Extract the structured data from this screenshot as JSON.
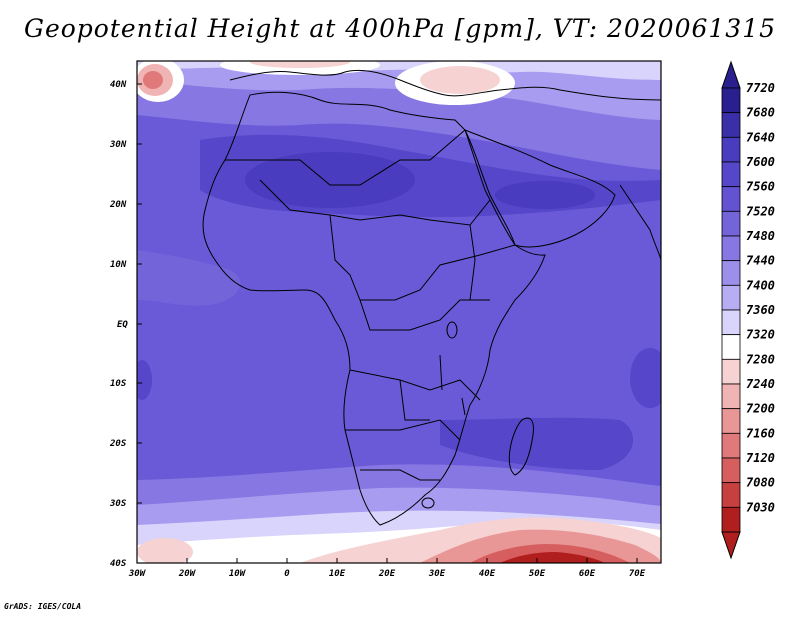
{
  "title": "Geopotential Height at 400hPa [gpm], VT: 2020061315",
  "credit": "GrADS: IGES/COLA",
  "colors": {
    "deep_blue": "#3a2fa8",
    "mid_blue": "#6a5ad8",
    "light_blue": "#a89cf0",
    "pale_blue": "#d9d4fb",
    "white": "#ffffff",
    "pale_red": "#f6c9c9",
    "mid_red": "#e07a7a",
    "deep_red": "#b01e1e"
  },
  "map": {
    "lat_labels": [
      "40N",
      "30N",
      "20N",
      "10N",
      "EQ",
      "10S",
      "20S",
      "30S",
      "40S"
    ],
    "lon_labels": [
      "30W",
      "20W",
      "10W",
      "0",
      "10E",
      "20E",
      "30E",
      "40E",
      "50E",
      "60E",
      "70E"
    ]
  },
  "colorbar": {
    "labels": [
      "7720",
      "7680",
      "7640",
      "7600",
      "7560",
      "7520",
      "7480",
      "7440",
      "7400",
      "7360",
      "7320",
      "7280",
      "7240",
      "7200",
      "7160",
      "7120",
      "7080",
      "7030"
    ],
    "colors": [
      "#2a1f8f",
      "#3a2fa8",
      "#4a3cbe",
      "#5646c9",
      "#6353d2",
      "#7464da",
      "#8677e2",
      "#9c8fea",
      "#b7adf2",
      "#d9d4fb",
      "#ffffff",
      "#f6d2d2",
      "#f0b4b4",
      "#e99696",
      "#e07a7a",
      "#d65e5e",
      "#c74040",
      "#b01e1e"
    ]
  }
}
